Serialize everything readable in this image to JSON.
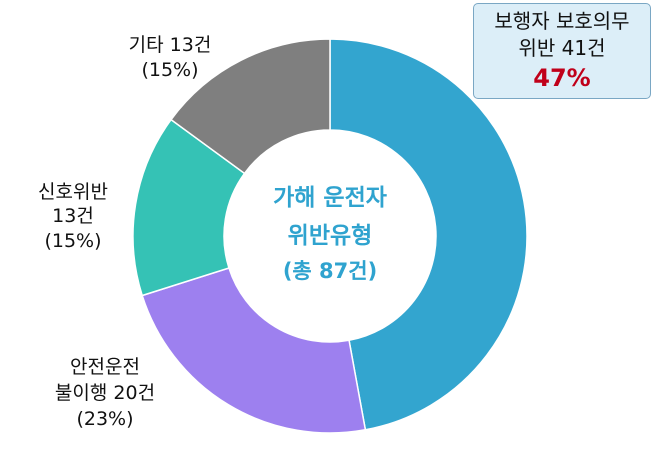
{
  "chart_data": {
    "type": "pie",
    "variant": "donut",
    "title_lines": [
      "가해 운전자",
      "위반유형",
      "(총 87건)"
    ],
    "total": 87,
    "unit": "건",
    "slices": [
      {
        "name": "보행자 보호의무 위반",
        "value": 41,
        "percent": 47,
        "color": "#33a5cf",
        "label_lines": [
          "보행자 보호의무",
          "위반 41건",
          "47%"
        ]
      },
      {
        "name": "안전운전 불이행",
        "value": 20,
        "percent": 23,
        "color": "#9d80ef",
        "label_lines": [
          "안전운전",
          "불이행 20건",
          "(23%)"
        ]
      },
      {
        "name": "신호위반",
        "value": 13,
        "percent": 15,
        "color": "#35c2b5",
        "label_lines": [
          "신호위반",
          "13건",
          "(15%)"
        ]
      },
      {
        "name": "기타",
        "value": 13,
        "percent": 15,
        "color": "#7f7f7f",
        "label_lines": [
          "기타 13건",
          "(15%)"
        ]
      }
    ],
    "highlight_color": "#c0001a",
    "callout_background": "#dceef8"
  }
}
